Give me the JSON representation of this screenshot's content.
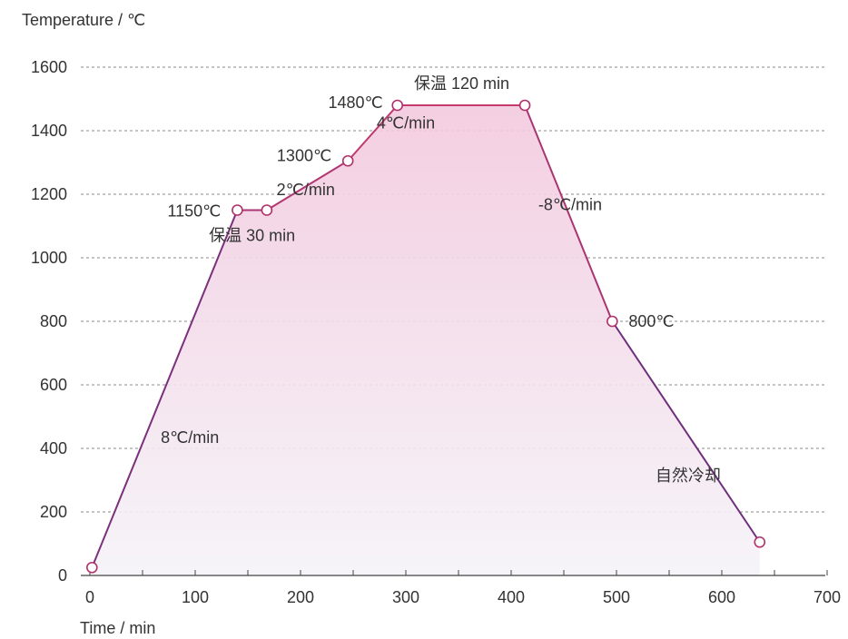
{
  "chart_data": {
    "type": "area",
    "xlabel": "Time / min",
    "ylabel": "Temperature / ℃",
    "xlim": [
      0,
      700
    ],
    "ylim": [
      0,
      1600
    ],
    "x_ticks": [
      0,
      100,
      200,
      300,
      400,
      500,
      600,
      700
    ],
    "y_ticks": [
      0,
      200,
      400,
      600,
      800,
      1000,
      1200,
      1400,
      1600
    ],
    "grid": "horizontal dashed",
    "series": [
      {
        "points": [
          {
            "x": 2,
            "y": 25
          },
          {
            "x": 140,
            "y": 1150
          },
          {
            "x": 168,
            "y": 1150
          },
          {
            "x": 245,
            "y": 1305
          },
          {
            "x": 292,
            "y": 1480
          },
          {
            "x": 413,
            "y": 1480
          },
          {
            "x": 496,
            "y": 800
          },
          {
            "x": 636,
            "y": 105
          }
        ]
      }
    ],
    "annotations": [
      {
        "text": "1150℃",
        "x": 140,
        "y": 1150,
        "anchor": "end",
        "dx": -18,
        "dy": 7
      },
      {
        "text": "保温 30 min",
        "x": 154,
        "y": 1150,
        "anchor": "middle",
        "dx": 0,
        "dy": 34
      },
      {
        "text": "1300℃",
        "x": 245,
        "y": 1305,
        "anchor": "end",
        "dx": -18,
        "dy": 0
      },
      {
        "text": "2℃/min",
        "x": 205,
        "y": 1220,
        "anchor": "middle",
        "dx": 0,
        "dy": 8
      },
      {
        "text": "1480℃",
        "x": 292,
        "y": 1480,
        "anchor": "end",
        "dx": -16,
        "dy": 3
      },
      {
        "text": "4℃/min",
        "x": 300,
        "y": 1430,
        "anchor": "middle",
        "dx": 0,
        "dy": 8
      },
      {
        "text": "保温 120 min",
        "x": 353,
        "y": 1480,
        "anchor": "middle",
        "dx": 0,
        "dy": -18
      },
      {
        "text": "-8℃/min",
        "x": 456,
        "y": 1150,
        "anchor": "middle",
        "dx": 0,
        "dy": 0
      },
      {
        "text": "800℃",
        "x": 496,
        "y": 800,
        "anchor": "start",
        "dx": 18,
        "dy": 6
      },
      {
        "text": "8℃/min",
        "x": 95,
        "y": 440,
        "anchor": "middle",
        "dx": 0,
        "dy": 8
      },
      {
        "text": "自然冷却",
        "x": 568,
        "y": 320,
        "anchor": "middle",
        "dx": 0,
        "dy": 8
      }
    ],
    "colors": {
      "line_start": "#4a2a86",
      "line_peak": "#d03a6a",
      "area_top": "#f2c9de",
      "area_bottom": "#f5f3f8",
      "grid": "#555555",
      "axis": "#444444",
      "text": "#333333",
      "marker_fill": "#ffffff",
      "marker_stroke": "#b0306a"
    }
  }
}
